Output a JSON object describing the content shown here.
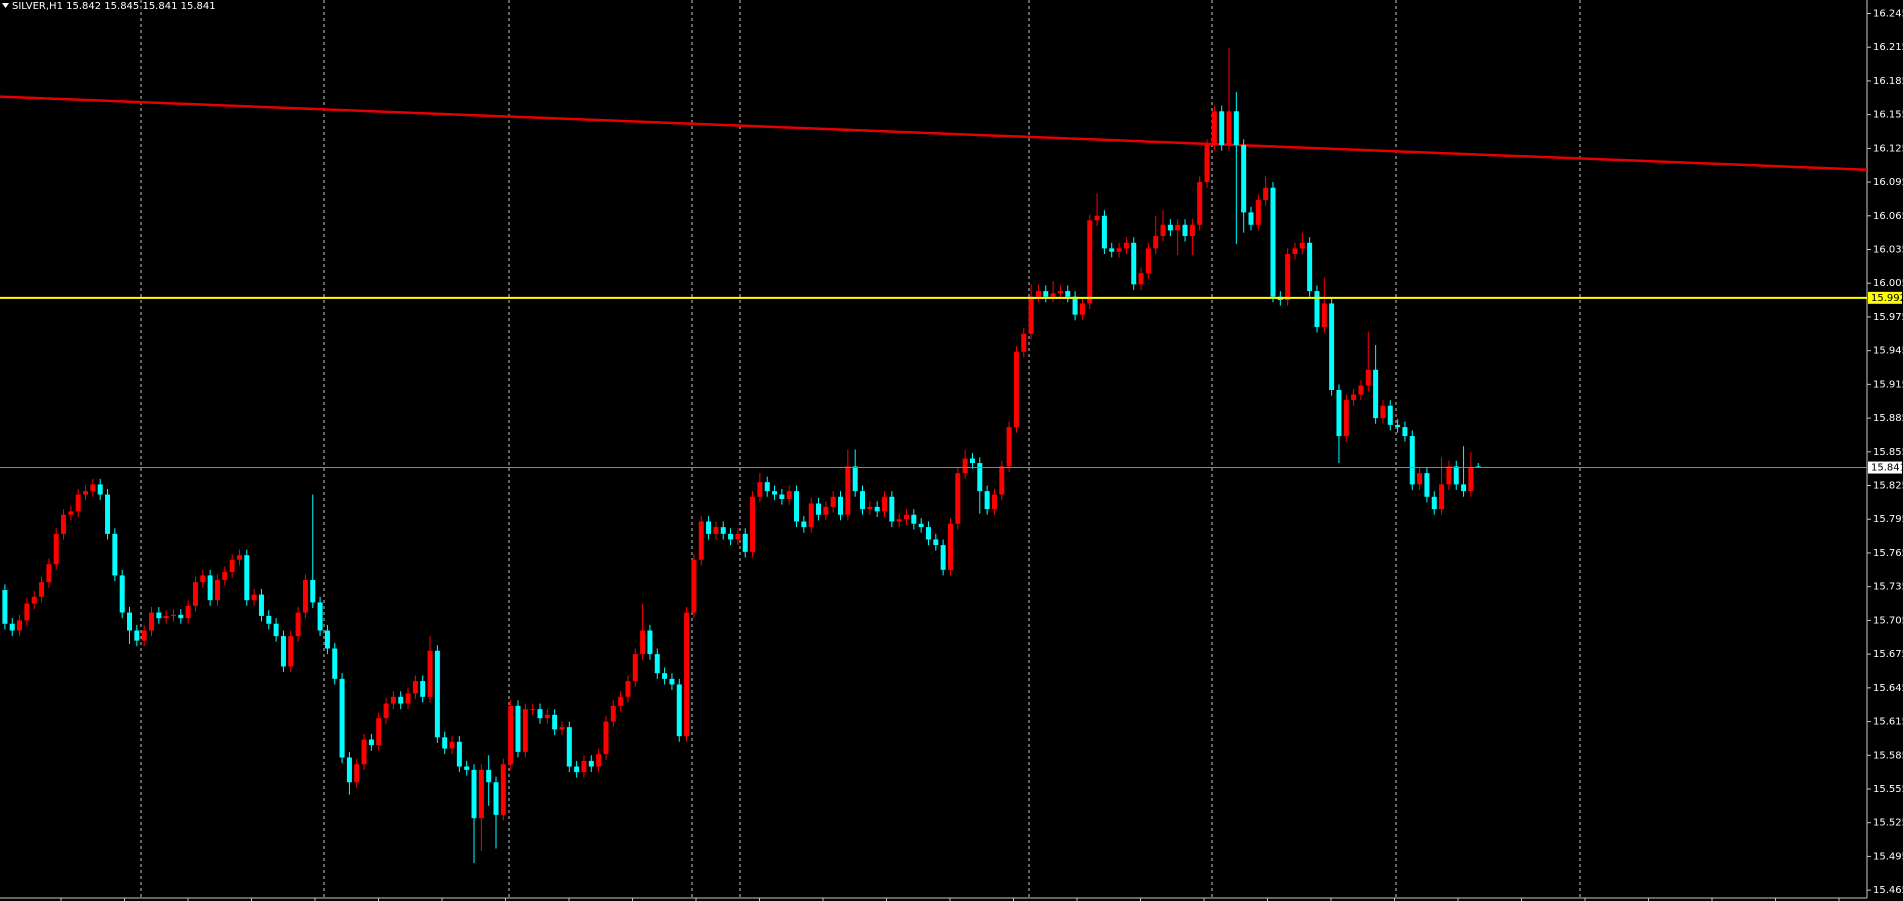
{
  "chart_data": {
    "type": "candlestick",
    "title": "SILVER,H1  15.842 15.845 15.841 15.841",
    "up_color": "#ff0000",
    "down_color": "#00ffff",
    "ylim": [
      15.458,
      16.257
    ],
    "yticks": [
      16.245,
      16.215,
      16.185,
      16.155,
      16.125,
      16.095,
      16.065,
      16.035,
      16.005,
      15.975,
      15.945,
      15.915,
      15.885,
      15.855,
      15.825,
      15.795,
      15.765,
      15.735,
      15.705,
      15.675,
      15.645,
      15.615,
      15.585,
      15.555,
      15.525,
      15.495,
      15.465
    ],
    "grid": false,
    "trend_line": {
      "color": "#e60000",
      "values": [
        16.171,
        16.106
      ]
    },
    "levels": [
      {
        "value": 15.992,
        "color": "#ffff00"
      },
      {
        "value": 15.841,
        "color": "#6f8aa6"
      }
    ],
    "open": [
      15.732,
      15.702,
      15.696,
      15.705,
      15.72,
      15.726,
      15.739,
      15.755,
      15.782,
      15.799,
      15.802,
      15.817,
      15.82,
      15.826,
      15.817,
      15.782,
      15.745,
      15.712,
      15.696,
      15.687,
      15.696,
      15.712,
      15.707,
      15.709,
      15.71,
      15.707,
      15.718,
      15.739,
      15.745,
      15.723,
      15.741,
      15.748,
      15.759,
      15.763,
      15.723,
      15.728,
      15.709,
      15.702,
      15.691,
      15.664,
      15.691,
      15.712,
      15.741,
      15.721,
      15.696,
      15.68,
      15.653,
      15.583,
      15.561,
      15.577,
      15.599,
      15.594,
      15.618,
      15.631,
      15.637,
      15.631,
      15.64,
      15.651,
      15.637,
      15.678,
      15.601,
      15.591,
      15.597,
      15.575,
      15.572,
      15.529,
      15.572,
      15.561,
      15.532,
      15.577,
      15.629,
      15.588,
      15.626,
      15.626,
      15.618,
      15.621,
      15.608,
      15.61,
      15.575,
      15.57,
      15.58,
      15.575,
      15.586,
      15.615,
      15.629,
      15.637,
      15.651,
      15.675,
      15.696,
      15.675,
      15.658,
      15.653,
      15.648,
      15.602,
      15.712,
      15.759,
      15.793,
      15.782,
      15.788,
      15.782,
      15.777,
      15.782,
      15.766,
      15.815,
      15.828,
      15.82,
      15.817,
      15.813,
      15.82,
      15.793,
      15.788,
      15.809,
      15.799,
      15.806,
      15.815,
      15.799,
      15.842,
      15.82,
      15.804,
      15.806,
      15.802,
      15.815,
      15.793,
      15.795,
      15.799,
      15.791,
      15.788,
      15.777,
      15.772,
      15.75,
      15.791,
      15.836,
      15.849,
      15.845,
      15.82,
      15.804,
      15.817,
      15.842,
      15.877,
      15.944,
      15.96,
      15.993,
      15.998,
      15.993,
      15.996,
      15.998,
      15.993,
      15.977,
      15.987,
      16.061,
      16.065,
      16.036,
      16.033,
      16.036,
      16.041,
      16.004,
      16.014,
      16.036,
      16.047,
      16.057,
      16.052,
      16.057,
      16.047,
      16.057,
      16.095,
      16.128,
      16.158,
      16.128,
      16.158,
      16.128,
      16.068,
      16.057,
      16.079,
      16.09,
      15.993,
      15.99,
      16.031,
      16.036,
      16.041,
      15.998,
      15.966,
      15.987,
      15.91,
      15.869,
      15.901,
      15.906,
      15.914,
      15.928,
      15.885,
      15.896,
      15.879,
      15.877,
      15.869,
      15.826,
      15.836,
      15.815,
      15.804,
      15.826,
      15.842,
      15.826,
      15.82,
      15.842
    ],
    "high": [
      15.737,
      15.707,
      15.71,
      15.725,
      15.731,
      15.744,
      15.76,
      15.787,
      15.804,
      15.807,
      15.822,
      15.825,
      15.831,
      15.831,
      15.822,
      15.787,
      15.75,
      15.717,
      15.701,
      15.701,
      15.717,
      15.717,
      15.714,
      15.715,
      15.715,
      15.723,
      15.744,
      15.75,
      15.75,
      15.746,
      15.753,
      15.764,
      15.768,
      15.768,
      15.733,
      15.733,
      15.714,
      15.707,
      15.696,
      15.696,
      15.717,
      15.746,
      15.817,
      15.726,
      15.701,
      15.685,
      15.658,
      15.588,
      15.582,
      15.604,
      15.604,
      15.623,
      15.636,
      15.642,
      15.642,
      15.645,
      15.656,
      15.656,
      15.691,
      15.683,
      15.606,
      15.602,
      15.602,
      15.58,
      15.577,
      15.577,
      15.585,
      15.566,
      15.582,
      15.634,
      15.634,
      15.631,
      15.631,
      15.631,
      15.626,
      15.626,
      15.615,
      15.615,
      15.58,
      15.585,
      15.585,
      15.591,
      15.62,
      15.634,
      15.642,
      15.656,
      15.68,
      15.72,
      15.701,
      15.68,
      15.663,
      15.658,
      15.653,
      15.717,
      15.764,
      15.798,
      15.798,
      15.793,
      15.793,
      15.787,
      15.787,
      15.787,
      15.82,
      15.836,
      15.833,
      15.825,
      15.822,
      15.825,
      15.825,
      15.798,
      15.814,
      15.814,
      15.811,
      15.82,
      15.82,
      15.857,
      15.857,
      15.825,
      15.811,
      15.811,
      15.82,
      15.82,
      15.8,
      15.804,
      15.804,
      15.796,
      15.793,
      15.782,
      15.777,
      15.796,
      15.841,
      15.857,
      15.854,
      15.85,
      15.825,
      15.822,
      15.847,
      15.882,
      15.949,
      15.965,
      16.004,
      16.004,
      16.003,
      16.007,
      16.003,
      16.003,
      15.998,
      15.992,
      16.066,
      16.085,
      16.07,
      16.041,
      16.041,
      16.046,
      16.046,
      16.019,
      16.041,
      16.065,
      16.07,
      16.062,
      16.062,
      16.062,
      16.062,
      16.1,
      16.133,
      16.163,
      16.163,
      16.214,
      16.175,
      16.133,
      16.073,
      16.084,
      16.1,
      16.095,
      15.998,
      16.036,
      16.041,
      16.05,
      16.046,
      16.003,
      16.01,
      15.992,
      15.915,
      15.906,
      15.911,
      15.919,
      15.962,
      15.95,
      15.901,
      15.901,
      15.884,
      15.882,
      15.874,
      15.841,
      15.841,
      15.82,
      15.85,
      15.847,
      15.847,
      15.86,
      15.855,
      15.845
    ],
    "low": [
      15.697,
      15.691,
      15.691,
      15.7,
      15.715,
      15.721,
      15.734,
      15.75,
      15.777,
      15.794,
      15.797,
      15.812,
      15.815,
      15.812,
      15.777,
      15.74,
      15.707,
      15.684,
      15.682,
      15.682,
      15.691,
      15.702,
      15.702,
      15.704,
      15.702,
      15.702,
      15.713,
      15.734,
      15.718,
      15.718,
      15.736,
      15.743,
      15.754,
      15.718,
      15.718,
      15.704,
      15.697,
      15.686,
      15.659,
      15.659,
      15.686,
      15.707,
      15.716,
      15.691,
      15.675,
      15.648,
      15.578,
      15.55,
      15.556,
      15.572,
      15.589,
      15.589,
      15.613,
      15.626,
      15.626,
      15.626,
      15.635,
      15.632,
      15.632,
      15.596,
      15.586,
      15.586,
      15.57,
      15.567,
      15.489,
      15.5,
      15.54,
      15.502,
      15.527,
      15.572,
      15.583,
      15.583,
      15.621,
      15.613,
      15.613,
      15.603,
      15.603,
      15.57,
      15.565,
      15.565,
      15.57,
      15.57,
      15.581,
      15.61,
      15.624,
      15.632,
      15.646,
      15.67,
      15.67,
      15.653,
      15.648,
      15.643,
      15.597,
      15.597,
      15.707,
      15.754,
      15.777,
      15.777,
      15.777,
      15.772,
      15.772,
      15.761,
      15.761,
      15.81,
      15.815,
      15.812,
      15.808,
      15.808,
      15.788,
      15.783,
      15.783,
      15.794,
      15.794,
      15.801,
      15.794,
      15.794,
      15.815,
      15.799,
      15.799,
      15.797,
      15.797,
      15.788,
      15.788,
      15.79,
      15.786,
      15.783,
      15.772,
      15.767,
      15.745,
      15.745,
      15.786,
      15.831,
      15.84,
      15.8,
      15.799,
      15.799,
      15.812,
      15.837,
      15.872,
      15.939,
      15.955,
      15.988,
      15.988,
      15.988,
      15.991,
      15.988,
      15.972,
      15.972,
      15.982,
      16.056,
      16.031,
      16.028,
      16.028,
      16.031,
      15.999,
      15.999,
      16.009,
      16.031,
      16.042,
      16.047,
      16.03,
      16.042,
      16.03,
      16.052,
      16.09,
      16.123,
      16.123,
      16.123,
      16.04,
      16.05,
      16.052,
      16.052,
      16.074,
      15.988,
      15.985,
      15.985,
      16.026,
      16.031,
      15.993,
      15.961,
      15.961,
      15.905,
      15.845,
      15.864,
      15.896,
      15.901,
      15.909,
      15.88,
      15.88,
      15.874,
      15.872,
      15.864,
      15.821,
      15.821,
      15.81,
      15.799,
      15.799,
      15.821,
      15.821,
      15.815,
      15.815,
      15.841
    ],
    "close": [
      15.702,
      15.696,
      15.705,
      15.72,
      15.726,
      15.739,
      15.755,
      15.782,
      15.799,
      15.802,
      15.817,
      15.82,
      15.826,
      15.817,
      15.782,
      15.745,
      15.712,
      15.696,
      15.687,
      15.696,
      15.712,
      15.707,
      15.709,
      15.71,
      15.707,
      15.718,
      15.739,
      15.745,
      15.723,
      15.741,
      15.748,
      15.759,
      15.763,
      15.723,
      15.728,
      15.709,
      15.702,
      15.691,
      15.664,
      15.691,
      15.712,
      15.741,
      15.721,
      15.696,
      15.68,
      15.653,
      15.583,
      15.561,
      15.577,
      15.599,
      15.594,
      15.618,
      15.631,
      15.637,
      15.631,
      15.64,
      15.651,
      15.637,
      15.678,
      15.601,
      15.591,
      15.597,
      15.575,
      15.572,
      15.529,
      15.572,
      15.561,
      15.532,
      15.577,
      15.629,
      15.588,
      15.626,
      15.626,
      15.618,
      15.621,
      15.608,
      15.61,
      15.575,
      15.57,
      15.58,
      15.575,
      15.586,
      15.615,
      15.629,
      15.637,
      15.651,
      15.675,
      15.696,
      15.675,
      15.658,
      15.653,
      15.648,
      15.602,
      15.712,
      15.759,
      15.793,
      15.782,
      15.788,
      15.782,
      15.777,
      15.782,
      15.766,
      15.815,
      15.828,
      15.82,
      15.817,
      15.813,
      15.82,
      15.793,
      15.788,
      15.809,
      15.799,
      15.806,
      15.815,
      15.799,
      15.842,
      15.82,
      15.804,
      15.806,
      15.802,
      15.815,
      15.793,
      15.795,
      15.799,
      15.791,
      15.788,
      15.777,
      15.772,
      15.75,
      15.791,
      15.836,
      15.849,
      15.845,
      15.82,
      15.804,
      15.817,
      15.842,
      15.877,
      15.944,
      15.96,
      15.993,
      15.998,
      15.993,
      15.996,
      15.998,
      15.993,
      15.977,
      15.987,
      16.061,
      16.065,
      16.036,
      16.033,
      16.036,
      16.041,
      16.004,
      16.014,
      16.036,
      16.047,
      16.057,
      16.052,
      16.057,
      16.047,
      16.057,
      16.095,
      16.128,
      16.158,
      16.128,
      16.158,
      16.128,
      16.068,
      16.057,
      16.079,
      16.09,
      15.993,
      15.99,
      16.031,
      16.036,
      16.041,
      15.998,
      15.966,
      15.987,
      15.91,
      15.869,
      15.901,
      15.906,
      15.914,
      15.928,
      15.885,
      15.896,
      15.879,
      15.877,
      15.869,
      15.826,
      15.836,
      15.815,
      15.804,
      15.826,
      15.842,
      15.826,
      15.82,
      15.841,
      15.841
    ]
  }
}
